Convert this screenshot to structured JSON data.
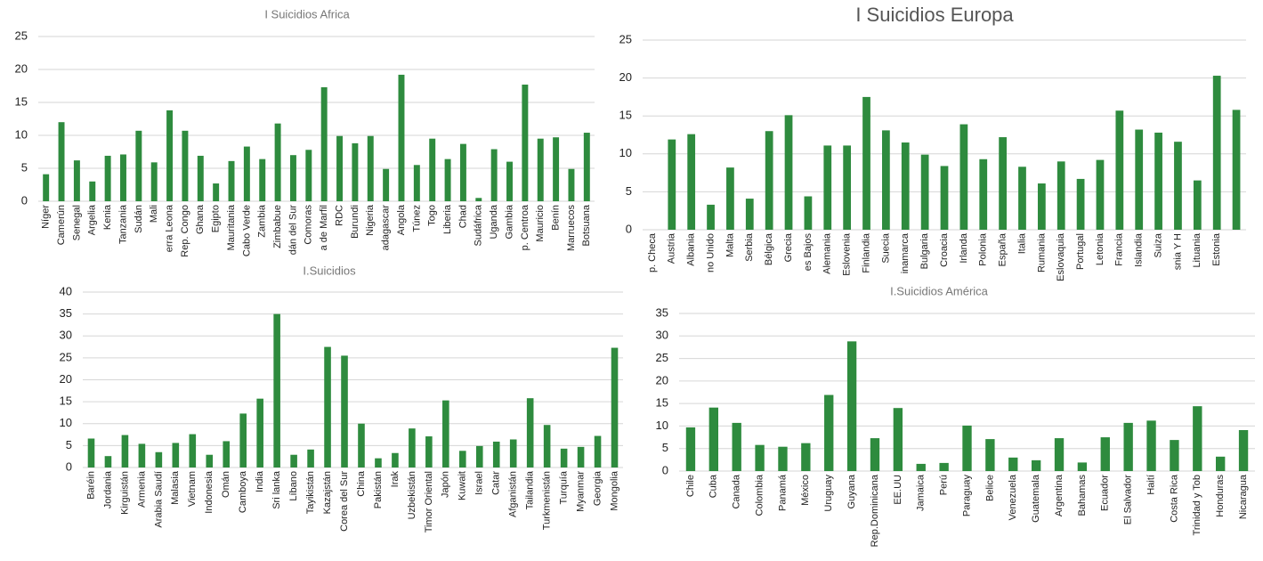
{
  "chart_data": [
    {
      "type": "bar",
      "title": "I Suicidios Africa",
      "categories": [
        "Níger",
        "Camerún",
        "Senegal",
        "Argelia",
        "Kenia",
        "Tanzania",
        "Sudán",
        "Mali",
        "erra Leona",
        "Rep. Congo",
        "Ghana",
        "Egipto",
        "Mauritania",
        "Cabo Verde",
        "Zambia",
        "Zimbabue",
        "dán del Sur",
        "Comoras",
        "a de Marfil",
        "RDC",
        "Burundi",
        "Nigeria",
        "adagascar",
        "Angola",
        "Túnez",
        "Togo",
        "Liberia",
        "Chad",
        "Sudáfrica",
        "Uganda",
        "Gambia",
        "p. Centroa",
        "Mauricio",
        "Benín",
        "Marruecos",
        "Botsuana"
      ],
      "values": [
        4.1,
        12,
        6.2,
        3,
        6.9,
        7.1,
        10.7,
        5.9,
        13.8,
        10.7,
        6.9,
        2.7,
        6.1,
        8.3,
        6.4,
        11.8,
        7,
        7.8,
        17.3,
        9.9,
        8.8,
        9.9,
        4.9,
        19.2,
        5.5,
        9.5,
        6.4,
        8.7,
        0.5,
        7.9,
        6,
        17.7,
        9.5,
        9.7,
        4.9,
        10.4
      ],
      "color": "#2e8b3e",
      "ylim": [
        0,
        25
      ],
      "yticks": [
        0,
        5,
        10,
        15,
        20,
        25
      ],
      "grid": true
    },
    {
      "type": "bar",
      "title": "I Suicidios Europa",
      "categories": [
        "p. Checa",
        "Austria",
        "Albania",
        "no Unido",
        "Malta",
        "Serbia",
        "Bélgica",
        "Grecia",
        "es Bajos",
        "Alemania",
        "Eslovenia",
        "Finlandia",
        "Suecia",
        "inamarca",
        "Bulgaria",
        "Croacia",
        "Irlanda",
        "Polonia",
        "España",
        "Italia",
        "Rumania",
        "Eslovaquia",
        "Portugal",
        "Letonia",
        "Francia",
        "Islandia",
        "Suiza",
        "snia Y H",
        "Lituania",
        "Estonia",
        null
      ],
      "values": [
        0,
        11.9,
        12.6,
        3.3,
        8.2,
        4.1,
        13,
        15.1,
        4.4,
        11.1,
        11.1,
        17.5,
        13.1,
        11.5,
        9.9,
        8.4,
        13.9,
        9.3,
        12.2,
        8.3,
        6.1,
        9,
        6.7,
        9.2,
        15.7,
        13.2,
        12.8,
        11.6,
        6.5,
        20.3,
        15.8
      ],
      "color": "#2e8b3e",
      "ylim": [
        0,
        25
      ],
      "yticks": [
        0,
        5,
        10,
        15,
        20,
        25
      ],
      "grid": true
    },
    {
      "type": "bar",
      "title": "I.Suicidios",
      "categories": [
        "Baréin",
        "Jordania",
        "Kirguistán",
        "Armenia",
        "Arabia Saudí",
        "Malasia",
        "Vietnam",
        "Indonesia",
        "Omán",
        "Camboya",
        "India",
        "Sri lanka",
        "Líbano",
        "Tayikistán",
        "Kazajstán",
        "Corea del Sur",
        "China",
        "Pakistán",
        "Irak",
        "Uzbekistán",
        "Timor Oriental",
        "Japón",
        "Kuwait",
        "Israel",
        "Catar",
        "Afganistán",
        "Tailandia",
        "Turkmenistán",
        "Turquía",
        "Myanmar",
        "Georgia",
        "Mongolia"
      ],
      "values": [
        6.6,
        2.6,
        7.4,
        5.4,
        3.5,
        5.6,
        7.6,
        2.9,
        6,
        12.3,
        15.7,
        35,
        2.9,
        4.1,
        27.5,
        25.5,
        10,
        2.1,
        3.3,
        8.9,
        7.1,
        15.3,
        3.8,
        4.9,
        5.9,
        6.4,
        15.8,
        9.7,
        4.3,
        4.7,
        7.2,
        27.3
      ],
      "color": "#2e8b3e",
      "ylim": [
        0,
        40
      ],
      "yticks": [
        0,
        5,
        10,
        15,
        20,
        25,
        30,
        35,
        40
      ],
      "grid": true
    },
    {
      "type": "bar",
      "title": "I.Suicidios América",
      "categories": [
        "Chile",
        "Cuba",
        "Canada",
        "Colombia",
        "Panamá",
        "México",
        "Uruguay",
        "Guyana",
        "Rep.Dominicana",
        "EE.UU",
        "Jamaica",
        "Perú",
        "Paraguay",
        "Belice",
        "Venezuela",
        "Guatemala",
        "Argentina",
        "Bahamas",
        "Ecuador",
        "El Salvador",
        "Haití",
        "Costa Rica",
        "Trinidad y Tob",
        "Honduras",
        "Nicaragua"
      ],
      "values": [
        9.7,
        14.1,
        10.7,
        5.8,
        5.4,
        6.2,
        16.9,
        28.8,
        7.3,
        14,
        1.6,
        1.8,
        10.1,
        7.1,
        3,
        2.4,
        7.3,
        1.9,
        7.5,
        10.7,
        11.2,
        6.9,
        14.4,
        3.2,
        9.1
      ],
      "color": "#2e8b3e",
      "ylim": [
        0,
        35
      ],
      "yticks": [
        0,
        5,
        10,
        15,
        20,
        25,
        30,
        35
      ],
      "grid": true
    }
  ]
}
